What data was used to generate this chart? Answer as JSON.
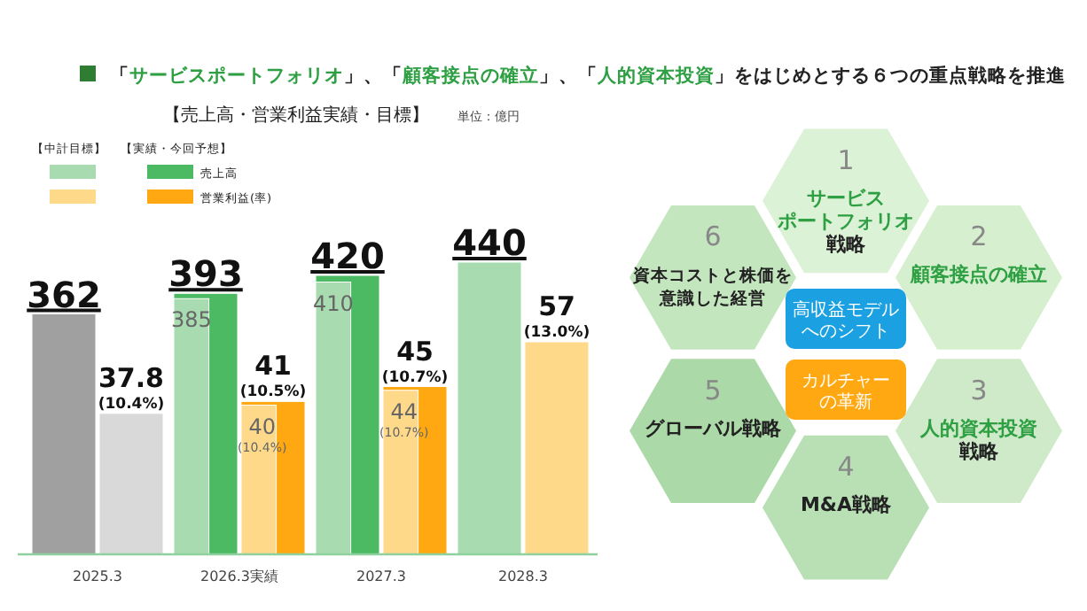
{
  "chart_data": [
    {
      "type": "bar",
      "title": "「サービスポートフォリオ」、「顧客接点の確立」、「人的資本投資」をはじめとする６つの重点戦略を推進",
      "subtitle": "【売上高・営業利益実績・目標】",
      "annotations": [
        "単位：億円",
        "【中計目標】",
        "【実績・今回予想】"
      ],
      "legend": "top left",
      "tick_labels": "x",
      "categories": [
        "2025.3",
        "2026.3実績",
        "2027.3",
        "2028.3"
      ],
      "series": [
        {
          "color": "#a8dcb0",
          "values": [
            null,
            385,
            410,
            440
          ],
          "value_labels": [
            null,
            "385",
            "410",
            "440"
          ]
        },
        {
          "name": "売上高",
          "color": "#4cb963",
          "colors": [
            "#a0a0a0",
            "#4cb963",
            "#4cb963",
            null
          ],
          "values": [
            362,
            393,
            420,
            null
          ],
          "value_labels": [
            "362",
            "393",
            "420",
            null
          ]
        },
        {
          "color": "#ffd98a",
          "axis": "y2",
          "values": [
            null,
            40,
            44,
            57
          ],
          "value_labels": [
            null,
            "40\n(10.4%)",
            "44\n(10.7%)",
            "57\n(13.0%)"
          ]
        },
        {
          "name": "営業利益(率)",
          "color": "#ffa812",
          "colors": [
            "#d9d9d9",
            "#ffa812",
            "#ffa812",
            null
          ],
          "axis": "y2",
          "values": [
            37.8,
            41,
            45,
            null
          ],
          "value_labels": [
            "37.8\n(10.4%)",
            "41\n(10.5%)",
            "45\n(10.7%)",
            null
          ]
        }
      ]
    },
    {
      "type": "other",
      "annotations": [
        "1",
        "サービス",
        "ポートフォリオ",
        "戦略",
        "2",
        "顧客接点の確立",
        "3",
        "人的資本投資",
        "戦略",
        "4",
        "M&A戦略",
        "5",
        "グローバル戦略",
        "6",
        "資本コストと株価を",
        "意識した経営"
      ]
    },
    {
      "type": "other",
      "annotations": [
        "高収益モデル",
        "へのシフト",
        "カルチャー",
        "の革新"
      ]
    }
  ]
}
